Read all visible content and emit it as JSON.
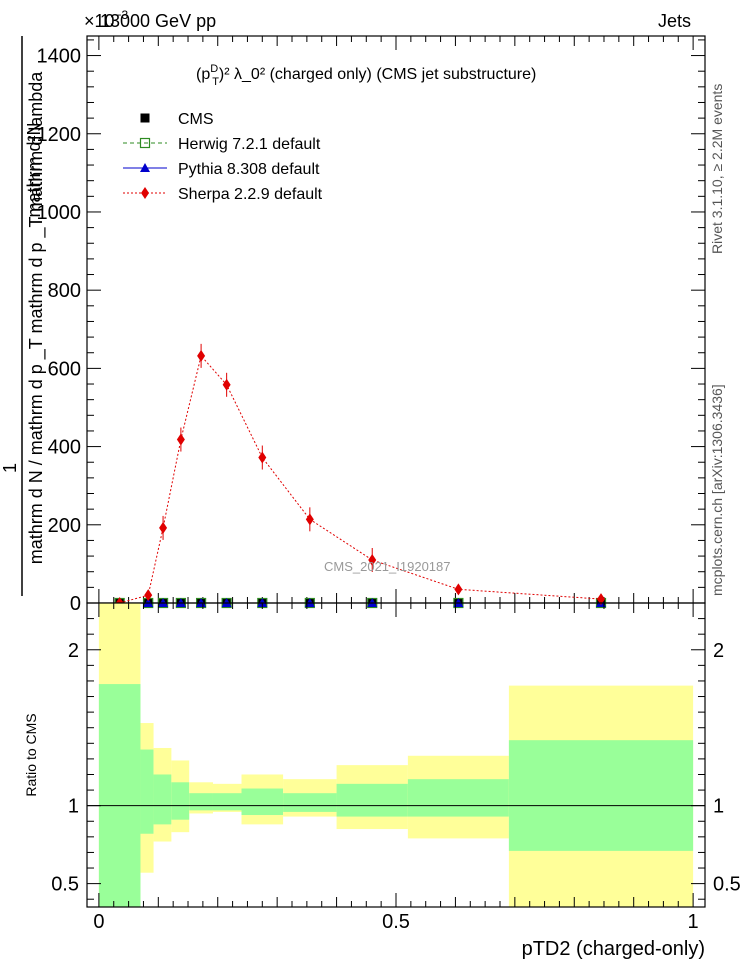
{
  "header": {
    "energy_label": "13000 GeV pp",
    "exponent_label": "×10",
    "exponent_sup": "−3",
    "category_label": "Jets"
  },
  "side": {
    "rivet_label": "Rivet 3.1.10, ≥ 2.2M events",
    "mcplots_label": "mcplots.cern.ch [arXiv:1306.3436]"
  },
  "chart_data": [
    {
      "type": "scatter",
      "title_prefix": "(p",
      "title_sub": "T",
      "title_sup": "D",
      "title_suffix": ")² λ_0² (charged only) (CMS jet substructure)",
      "ylabel_num": "1",
      "ylabel_den": "mathrm d N / mathrm d p _T mathrm d p _T mathrm d lambda",
      "ylabel_top": "mathrm d²N",
      "xlabel": "pTD2 (charged-only)",
      "watermark": "CMS_2021_I1920187",
      "xlim": [
        -0.02,
        1.02
      ],
      "ylim": [
        0,
        1450
      ],
      "y_ticks": [
        0,
        200,
        400,
        600,
        800,
        1000,
        1200,
        1400
      ],
      "y_tick_labels": [
        "0",
        "200",
        "400",
        "600",
        "800",
        "1000",
        "1200",
        "1400"
      ],
      "legend_position": "top-left",
      "series": [
        {
          "name": "CMS",
          "marker": "square",
          "color": "#000000",
          "x": [
            0.035,
            0.083,
            0.108,
            0.138,
            0.172,
            0.215,
            0.275,
            0.355,
            0.46,
            0.605,
            0.845
          ],
          "y": [
            0,
            0,
            0,
            0,
            0,
            0,
            0,
            0,
            0,
            0,
            0
          ]
        },
        {
          "name": "Herwig 7.2.1 default",
          "marker": "open-square",
          "color": "#2e8b22",
          "line": "dashed",
          "x": [
            0.035,
            0.083,
            0.108,
            0.138,
            0.172,
            0.215,
            0.275,
            0.355,
            0.46,
            0.605,
            0.845
          ],
          "y": [
            0,
            0,
            0,
            0,
            0,
            0,
            0,
            0,
            0,
            0,
            0
          ]
        },
        {
          "name": "Pythia 8.308 default",
          "marker": "triangle",
          "color": "#0000cc",
          "line": "solid",
          "x": [
            0.035,
            0.083,
            0.108,
            0.138,
            0.172,
            0.215,
            0.275,
            0.355,
            0.46,
            0.605,
            0.845
          ],
          "y": [
            0,
            0,
            0,
            0,
            0,
            0,
            0,
            0,
            0,
            0,
            0
          ]
        },
        {
          "name": "Sherpa 2.2.9 default",
          "marker": "diamond",
          "color": "#e00000",
          "line": "dotted",
          "x": [
            0.035,
            0.083,
            0.108,
            0.138,
            0.172,
            0.215,
            0.275,
            0.355,
            0.46,
            0.605,
            0.845
          ],
          "y": [
            0,
            20,
            192,
            418,
            632,
            558,
            372,
            214,
            110,
            35,
            10
          ]
        }
      ]
    },
    {
      "type": "area",
      "ylabel": "Ratio to CMS",
      "xlim": [
        -0.02,
        1.02
      ],
      "ylim": [
        0.35,
        2.3
      ],
      "x_ticks": [
        0,
        0.5,
        1
      ],
      "x_tick_labels": [
        "0",
        "0.5",
        "1"
      ],
      "y_ticks": [
        0.5,
        1,
        2
      ],
      "y_tick_labels": [
        "0.5",
        "1",
        "2"
      ],
      "reference_line": 1,
      "band_colors": {
        "outer": "#ffff99",
        "inner": "#99ff99"
      },
      "bins": [
        {
          "x0": 0.0,
          "x1": 0.07,
          "outer_lo": 0.35,
          "outer_hi": 2.3,
          "inner_lo": 0.35,
          "inner_hi": 1.78
        },
        {
          "x0": 0.07,
          "x1": 0.092,
          "outer_lo": 0.57,
          "outer_hi": 1.53,
          "inner_lo": 0.82,
          "inner_hi": 1.36
        },
        {
          "x0": 0.092,
          "x1": 0.122,
          "outer_lo": 0.77,
          "outer_hi": 1.37,
          "inner_lo": 0.88,
          "inner_hi": 1.2
        },
        {
          "x0": 0.122,
          "x1": 0.152,
          "outer_lo": 0.83,
          "outer_hi": 1.29,
          "inner_lo": 0.91,
          "inner_hi": 1.15
        },
        {
          "x0": 0.152,
          "x1": 0.192,
          "outer_lo": 0.95,
          "outer_hi": 1.15,
          "inner_lo": 0.97,
          "inner_hi": 1.08
        },
        {
          "x0": 0.192,
          "x1": 0.24,
          "outer_lo": 0.96,
          "outer_hi": 1.14,
          "inner_lo": 0.97,
          "inner_hi": 1.08
        },
        {
          "x0": 0.24,
          "x1": 0.31,
          "outer_lo": 0.88,
          "outer_hi": 1.2,
          "inner_lo": 0.94,
          "inner_hi": 1.11
        },
        {
          "x0": 0.31,
          "x1": 0.4,
          "outer_lo": 0.93,
          "outer_hi": 1.17,
          "inner_lo": 0.96,
          "inner_hi": 1.08
        },
        {
          "x0": 0.4,
          "x1": 0.52,
          "outer_lo": 0.85,
          "outer_hi": 1.26,
          "inner_lo": 0.93,
          "inner_hi": 1.14
        },
        {
          "x0": 0.52,
          "x1": 0.69,
          "outer_lo": 0.79,
          "outer_hi": 1.32,
          "inner_lo": 0.93,
          "inner_hi": 1.17
        },
        {
          "x0": 0.69,
          "x1": 1.0,
          "outer_lo": 0.35,
          "outer_hi": 1.77,
          "inner_lo": 0.71,
          "inner_hi": 1.42
        }
      ]
    }
  ]
}
